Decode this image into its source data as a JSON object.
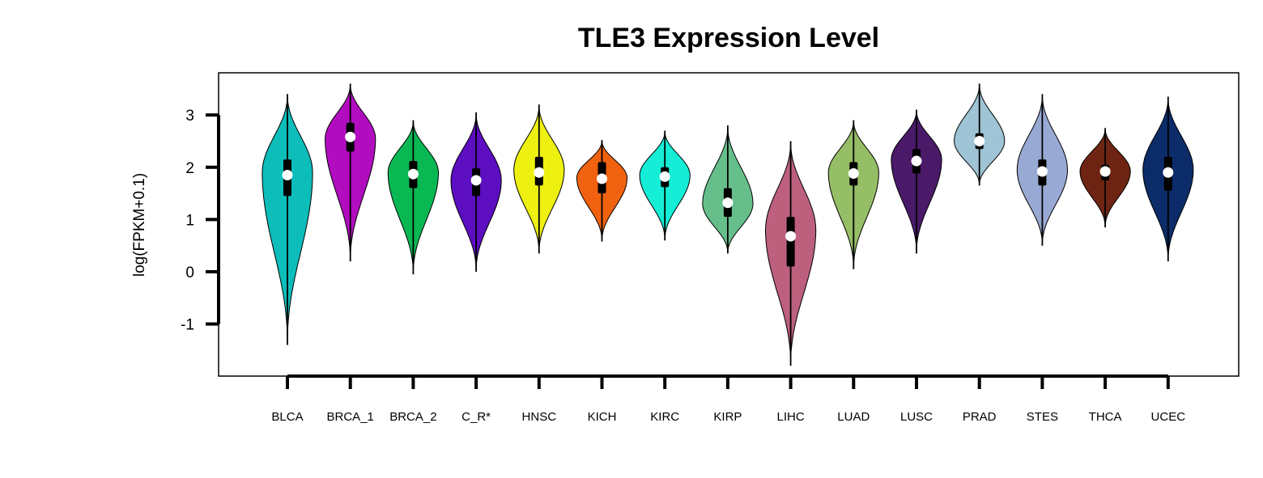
{
  "chart_data": {
    "type": "violin",
    "title": "TLE3 Expression Level",
    "xlabel": "",
    "ylabel": "log(FPKM+0.1)",
    "ylim": [
      -2,
      3.8
    ],
    "yticks": [
      -1,
      0,
      1,
      2,
      3
    ],
    "ytick_labels": [
      "-1",
      "0",
      "1",
      "2",
      "3"
    ],
    "grid": false,
    "legend": "none",
    "categories": [
      "BLCA",
      "BRCA_1",
      "BRCA_2",
      "C_R*",
      "HNSC",
      "KICH",
      "KIRC",
      "KIRP",
      "LIHC",
      "LUAD",
      "LUSC",
      "PRAD",
      "STES",
      "THCA",
      "UCEC"
    ],
    "colors": [
      "#0CBDBA",
      "#B10DBF",
      "#0AB853",
      "#5C0EC0",
      "#EDF011",
      "#F0620F",
      "#15EDD6",
      "#66BE8A",
      "#BC607E",
      "#95BE66",
      "#4A1A69",
      "#9EC4D5",
      "#98A9D3",
      "#6E2412",
      "#0B2C68"
    ],
    "series": [
      {
        "category": "BLCA",
        "min": -1.4,
        "max": 3.4,
        "q1": 1.45,
        "median": 1.85,
        "q3": 2.15,
        "mode": 1.9,
        "halfwidth": 0.4
      },
      {
        "category": "BRCA_1",
        "min": 0.2,
        "max": 3.6,
        "q1": 2.3,
        "median": 2.58,
        "q3": 2.85,
        "mode": 2.55,
        "halfwidth": 0.4
      },
      {
        "category": "BRCA_2",
        "min": -0.05,
        "max": 2.9,
        "q1": 1.6,
        "median": 1.87,
        "q3": 2.12,
        "mode": 1.9,
        "halfwidth": 0.4
      },
      {
        "category": "C_R*",
        "min": 0.0,
        "max": 3.05,
        "q1": 1.45,
        "median": 1.75,
        "q3": 1.98,
        "mode": 1.75,
        "halfwidth": 0.4
      },
      {
        "category": "HNSC",
        "min": 0.35,
        "max": 3.2,
        "q1": 1.65,
        "median": 1.9,
        "q3": 2.2,
        "mode": 1.95,
        "halfwidth": 0.4
      },
      {
        "category": "KICH",
        "min": 0.58,
        "max": 2.52,
        "q1": 1.5,
        "median": 1.78,
        "q3": 2.1,
        "mode": 1.8,
        "halfwidth": 0.4
      },
      {
        "category": "KIRC",
        "min": 0.6,
        "max": 2.7,
        "q1": 1.62,
        "median": 1.82,
        "q3": 2.0,
        "mode": 1.85,
        "halfwidth": 0.4
      },
      {
        "category": "KIRP",
        "min": 0.35,
        "max": 2.8,
        "q1": 1.05,
        "median": 1.32,
        "q3": 1.6,
        "mode": 1.3,
        "halfwidth": 0.4
      },
      {
        "category": "LIHC",
        "min": -1.8,
        "max": 2.5,
        "q1": 0.1,
        "median": 0.68,
        "q3": 1.05,
        "mode": 0.8,
        "halfwidth": 0.4
      },
      {
        "category": "LUAD",
        "min": 0.05,
        "max": 2.9,
        "q1": 1.65,
        "median": 1.88,
        "q3": 2.1,
        "mode": 1.9,
        "halfwidth": 0.4
      },
      {
        "category": "LUSC",
        "min": 0.35,
        "max": 3.1,
        "q1": 1.88,
        "median": 2.12,
        "q3": 2.35,
        "mode": 2.15,
        "halfwidth": 0.4
      },
      {
        "category": "PRAD",
        "min": 1.65,
        "max": 3.6,
        "q1": 2.35,
        "median": 2.5,
        "q3": 2.65,
        "mode": 2.5,
        "halfwidth": 0.4
      },
      {
        "category": "STES",
        "min": 0.5,
        "max": 3.4,
        "q1": 1.65,
        "median": 1.92,
        "q3": 2.15,
        "mode": 1.95,
        "halfwidth": 0.4
      },
      {
        "category": "THCA",
        "min": 0.85,
        "max": 2.75,
        "q1": 1.75,
        "median": 1.92,
        "q3": 2.05,
        "mode": 1.92,
        "halfwidth": 0.4
      },
      {
        "category": "UCEC",
        "min": 0.2,
        "max": 3.35,
        "q1": 1.55,
        "median": 1.9,
        "q3": 2.2,
        "mode": 1.95,
        "halfwidth": 0.4
      }
    ]
  }
}
